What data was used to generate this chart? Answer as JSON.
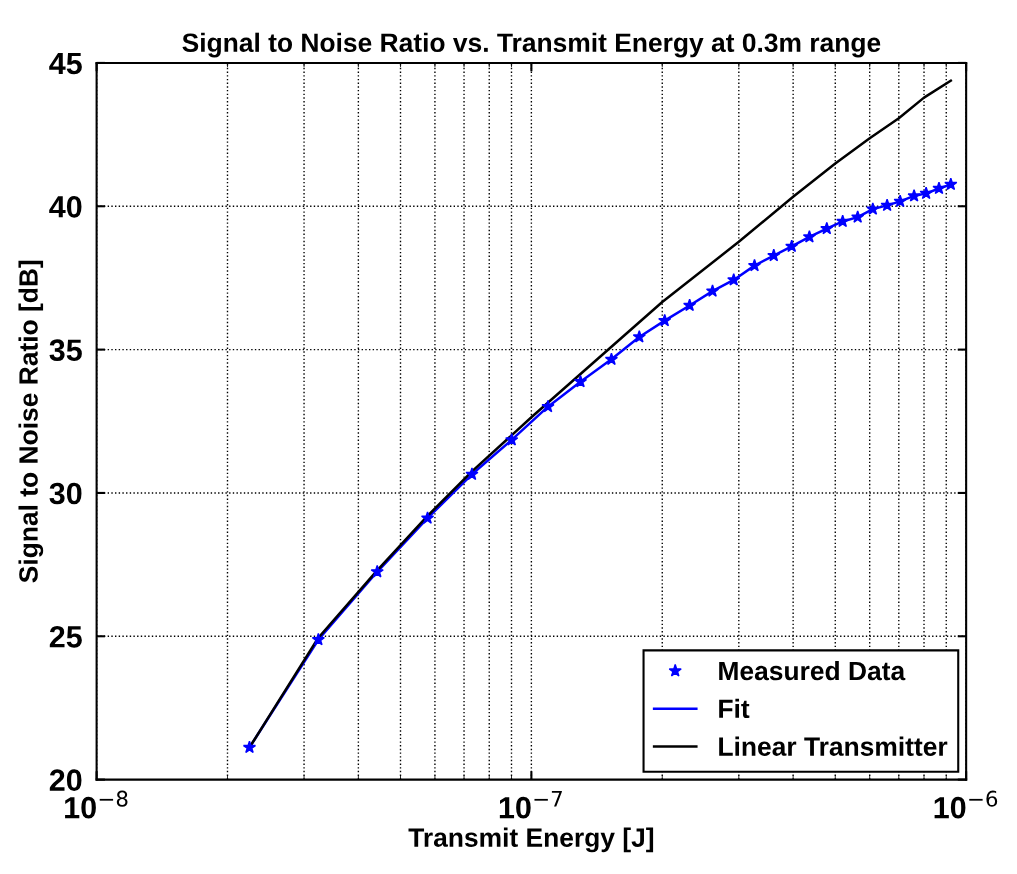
{
  "chart_data": {
    "type": "line",
    "title": "Signal to Noise Ratio vs. Transmit Energy at 0.3m range",
    "xlabel": "Transmit Energy [J]",
    "ylabel": "Signal to Noise Ratio [dB]",
    "log": "x",
    "xlim": [
      1e-08,
      1e-06
    ],
    "xticks": [
      {
        "value": 1e-08,
        "label": "10$^{−8}$"
      },
      {
        "value": 1e-07,
        "label": "10$^{−7}$"
      },
      {
        "value": 1e-06,
        "label": "10$^{−6}$"
      }
    ],
    "ylim": [
      20,
      45
    ],
    "yticks": [
      20,
      25,
      30,
      35,
      40,
      45
    ],
    "grid": true,
    "legend": "bottom right",
    "x": [
      2.247e-08,
      3.236e-08,
      4.42e-08,
      5.77e-08,
      7.3e-08,
      9.01e-08,
      1.092e-07,
      1.297e-07,
      1.528e-07,
      1.771e-07,
      2.026e-07,
      2.312e-07,
      2.61e-07,
      2.92e-07,
      3.26e-07,
      3.61e-07,
      3.97e-07,
      4.36e-07,
      4.78e-07,
      5.2e-07,
      5.63e-07,
      6.1e-07,
      6.58e-07,
      7.05e-07,
      7.59e-07,
      8.09e-07,
      8.66e-07,
      9.22e-07
    ],
    "series": [
      {
        "name": "Measured Data",
        "type": "scatter",
        "marker": "star",
        "color": "#0000ff",
        "values": [
          21.12,
          24.88,
          27.25,
          29.12,
          30.65,
          31.85,
          33.01,
          33.88,
          34.66,
          35.44,
          36.01,
          36.54,
          37.04,
          37.43,
          37.93,
          38.28,
          38.6,
          38.93,
          39.22,
          39.47,
          39.62,
          39.9,
          40.03,
          40.17,
          40.36,
          40.45,
          40.62,
          40.76
        ]
      },
      {
        "name": "Fit",
        "color": "#0000ff",
        "values": [
          21.12,
          24.88,
          27.25,
          29.12,
          30.65,
          31.85,
          33.01,
          33.88,
          34.66,
          35.44,
          36.01,
          36.54,
          37.04,
          37.43,
          37.93,
          38.28,
          38.6,
          38.93,
          39.22,
          39.47,
          39.62,
          39.9,
          40.03,
          40.17,
          40.36,
          40.45,
          40.62,
          40.76
        ]
      },
      {
        "name": "Linear Transmitter",
        "color": "#000000",
        "x": [
          2.247e-08,
          3.236e-08,
          4.42e-08,
          5.77e-08,
          7.3e-08,
          1e-07,
          2e-07,
          3e-07,
          4e-07,
          5e-07,
          6e-07,
          7e-07,
          8e-07,
          9.22e-07
        ],
        "values": [
          21.12,
          24.95,
          27.3,
          29.2,
          30.75,
          32.64,
          36.66,
          38.76,
          40.33,
          41.49,
          42.37,
          43.07,
          43.79,
          44.38
        ]
      }
    ]
  }
}
